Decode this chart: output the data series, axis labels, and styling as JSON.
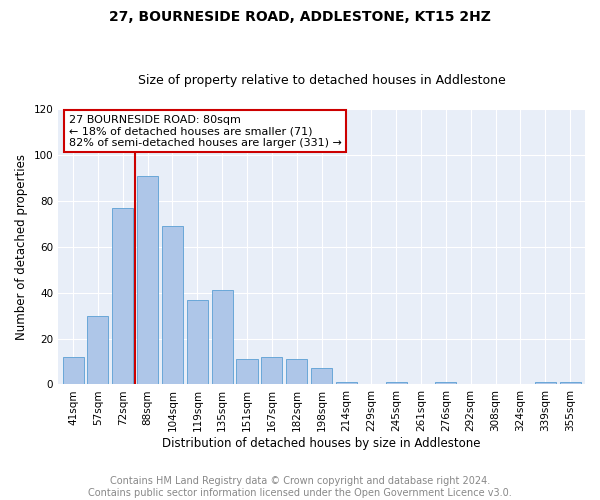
{
  "title": "27, BOURNESIDE ROAD, ADDLESTONE, KT15 2HZ",
  "subtitle": "Size of property relative to detached houses in Addlestone",
  "xlabel": "Distribution of detached houses by size in Addlestone",
  "ylabel": "Number of detached properties",
  "categories": [
    "41sqm",
    "57sqm",
    "72sqm",
    "88sqm",
    "104sqm",
    "119sqm",
    "135sqm",
    "151sqm",
    "167sqm",
    "182sqm",
    "198sqm",
    "214sqm",
    "229sqm",
    "245sqm",
    "261sqm",
    "276sqm",
    "292sqm",
    "308sqm",
    "324sqm",
    "339sqm",
    "355sqm"
  ],
  "values": [
    12,
    30,
    77,
    91,
    69,
    37,
    41,
    11,
    12,
    11,
    7,
    1,
    0,
    1,
    0,
    1,
    0,
    0,
    0,
    1,
    1
  ],
  "bar_color": "#aec6e8",
  "bar_edge_color": "#5a9fd4",
  "vline_color": "#cc0000",
  "vline_x_index": 2.5,
  "ylim": [
    0,
    120
  ],
  "yticks": [
    0,
    20,
    40,
    60,
    80,
    100,
    120
  ],
  "annotation_title": "27 BOURNESIDE ROAD: 80sqm",
  "annotation_line2": "← 18% of detached houses are smaller (71)",
  "annotation_line3": "82% of semi-detached houses are larger (331) →",
  "annotation_box_color": "#cc0000",
  "background_color": "#e8eef8",
  "footer_line1": "Contains HM Land Registry data © Crown copyright and database right 2024.",
  "footer_line2": "Contains public sector information licensed under the Open Government Licence v3.0.",
  "title_fontsize": 10,
  "subtitle_fontsize": 9,
  "tick_fontsize": 7.5,
  "label_fontsize": 8.5,
  "annotation_fontsize": 8,
  "footer_fontsize": 7
}
